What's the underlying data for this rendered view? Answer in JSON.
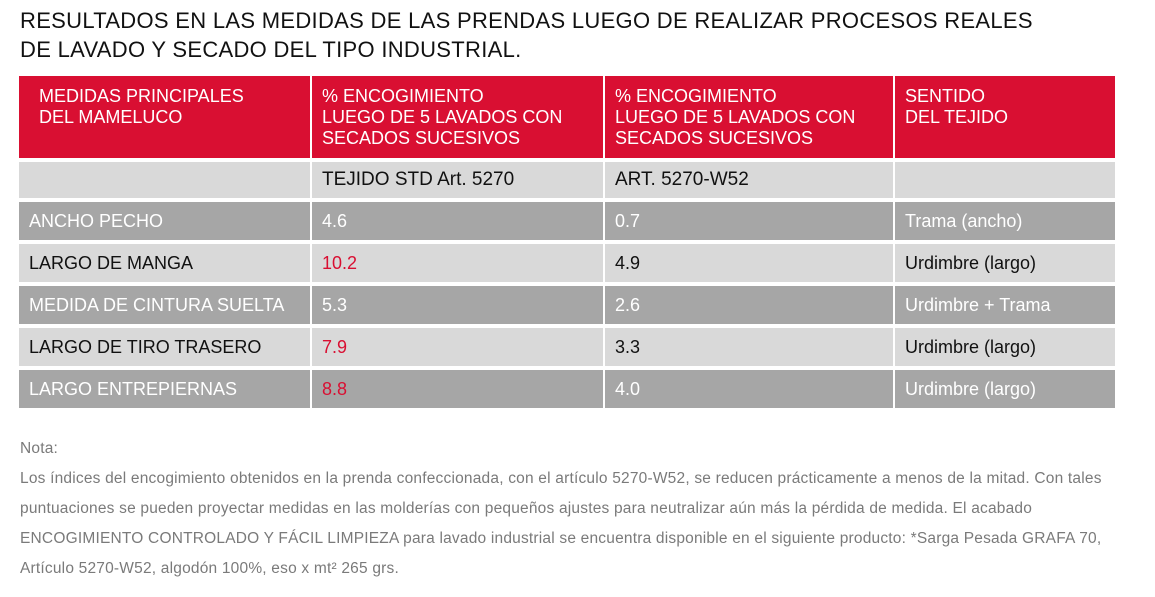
{
  "title": {
    "line1": "RESULTADOS EN LAS MEDIDAS DE LAS PRENDAS LUEGO DE REALIZAR PROCESOS REALES",
    "line2": "DE LAVADO Y SECADO DEL TIPO INDUSTRIAL."
  },
  "colors": {
    "header_bg": "#d90f32",
    "row_dark": "#a6a6a6",
    "row_light": "#d9d9d9",
    "highlight": "#d90f32"
  },
  "table": {
    "headers": [
      [
        "MEDIDAS PRINCIPALES",
        "DEL MAMELUCO"
      ],
      [
        "% ENCOGIMIENTO",
        "LUEGO DE 5 LAVADOS CON",
        "SECADOS SUCESIVOS"
      ],
      [
        "% ENCOGIMIENTO",
        "LUEGO DE 5 LAVADOS CON",
        "SECADOS SUCESIVOS"
      ],
      [
        "SENTIDO",
        "DEL TEJIDO"
      ]
    ],
    "subheader": [
      "",
      "TEJIDO STD Art. 5270",
      "ART. 5270-W52",
      ""
    ],
    "rows": [
      {
        "measure": "ANCHO PECHO",
        "std": "4.6",
        "w52": "0.7",
        "direction": "Trama (ancho)",
        "std_highlight": false
      },
      {
        "measure": "LARGO DE MANGA",
        "std": "10.2",
        "w52": "4.9",
        "direction": "Urdimbre (largo)",
        "std_highlight": true
      },
      {
        "measure": "MEDIDA DE CINTURA SUELTA",
        "std": "5.3",
        "w52": "2.6",
        "direction": "Urdimbre + Trama",
        "std_highlight": false
      },
      {
        "measure": "LARGO DE TIRO TRASERO",
        "std": "7.9",
        "w52": "3.3",
        "direction": "Urdimbre (largo)",
        "std_highlight": true
      },
      {
        "measure": "LARGO ENTREPIERNAS",
        "std": "8.8",
        "w52": "4.0",
        "direction": "Urdimbre (largo)",
        "std_highlight": true
      }
    ]
  },
  "note": {
    "label": "Nota:",
    "text": "Los índices del encogimiento obtenidos en la prenda confeccionada, con el artículo 5270-W52, se reducen prácticamente a menos de la mitad. Con tales puntuaciones se pueden proyectar medidas en las molderías con pequeños ajustes para neutralizar aún más la pérdida de medida. El acabado ENCOGIMIENTO CONTROLADO Y FÁCIL LIMPIEZA para lavado industrial se encuentra disponible en el siguiente producto: *Sarga Pesada GRAFA 70, Artículo 5270-W52, algodón 100%, eso x mt² 265 grs."
  }
}
